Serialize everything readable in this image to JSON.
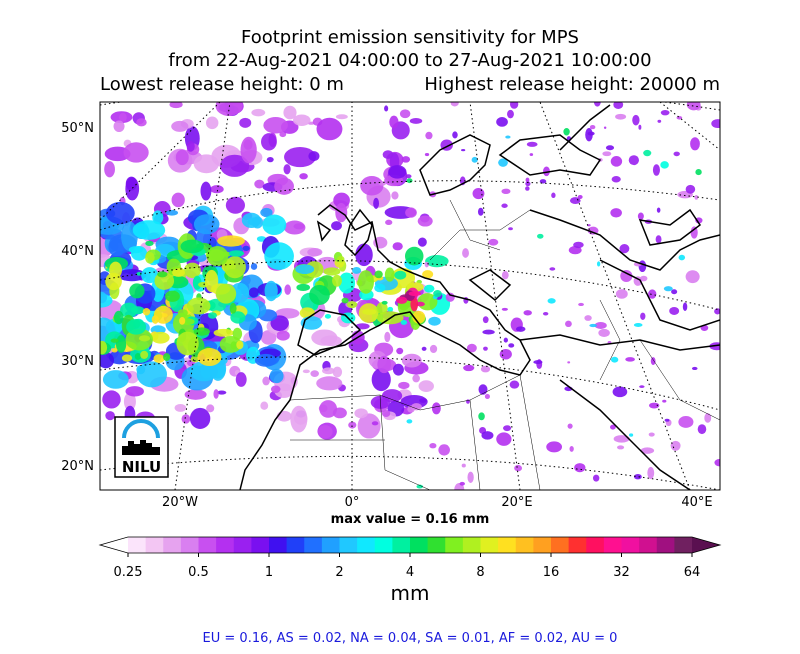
{
  "title": {
    "line1": "Footprint emission sensitivity for MPS",
    "line2": "from 22-Aug-2021 04:00:00 to 27-Aug-2021 10:00:00",
    "lowest": "Lowest release height: 0 m",
    "highest": "Highest release height: 20000 m"
  },
  "map": {
    "lat_labels": [
      "50°N",
      "40°N",
      "30°N",
      "20°N"
    ],
    "lon_labels": [
      "20°W",
      "0°",
      "20°E",
      "40°E"
    ],
    "logo": "NILU"
  },
  "max_value": "max value = 0.16 mm",
  "colorbar": {
    "ticks": [
      0.25,
      0.5,
      1,
      2,
      4,
      8,
      16,
      32,
      64
    ],
    "label": "mm",
    "colors": [
      "#fbe4fb",
      "#f3c6f3",
      "#e6a3ef",
      "#d97ff0",
      "#c850f0",
      "#b430f0",
      "#9a20f0",
      "#7a10f0",
      "#4010f0",
      "#2040f8",
      "#2070ff",
      "#20a0ff",
      "#20c8ff",
      "#10e8ff",
      "#00ffe0",
      "#00f0a0",
      "#00e060",
      "#30e030",
      "#80f020",
      "#b0f020",
      "#e0f020",
      "#ffe020",
      "#ffc020",
      "#ffa020",
      "#ff7020",
      "#ff3030",
      "#ff1060",
      "#ff1090",
      "#f010a0",
      "#d01090",
      "#a01080",
      "#702060"
    ],
    "under_color": "#ffffff",
    "over_color": "#5a1050"
  },
  "footer": "EU = 0.16,  AS = 0.02,  NA = 0.04,  SA = 0.01,  AF = 0.02,  AU = 0"
}
